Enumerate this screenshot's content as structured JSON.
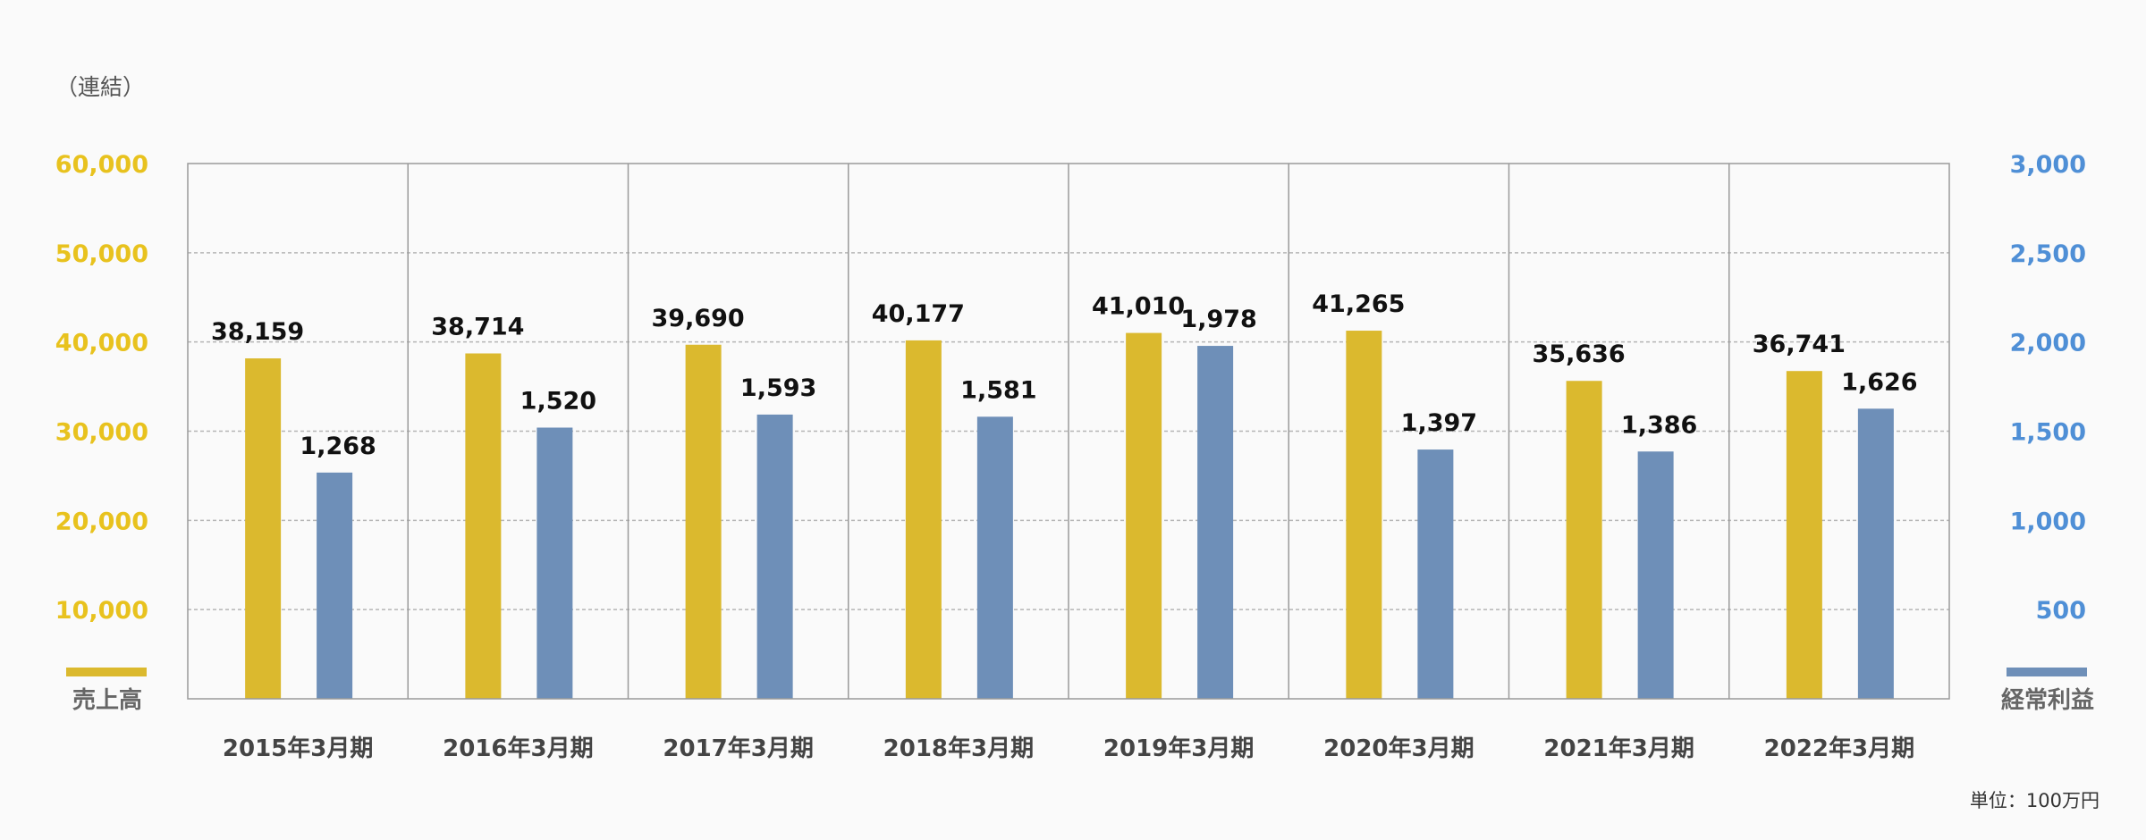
{
  "chart_data": {
    "type": "bar",
    "note": "（連結）",
    "unit": "単位：100万円",
    "categories": [
      "2015年3月期",
      "2016年3月期",
      "2017年3月期",
      "2018年3月期",
      "2019年3月期",
      "2020年3月期",
      "2021年3月期",
      "2022年3月期"
    ],
    "series": [
      {
        "name": "売上高",
        "axis": "left",
        "color": "#dbb92e",
        "values": [
          38159,
          38714,
          39690,
          40177,
          41010,
          41265,
          35636,
          36741
        ],
        "labels": [
          "38,159",
          "38,714",
          "39,690",
          "40,177",
          "41,010",
          "41,265",
          "35,636",
          "36,741"
        ]
      },
      {
        "name": "経常利益",
        "axis": "right",
        "color": "#6e8fb8",
        "values": [
          1268,
          1520,
          1593,
          1581,
          1978,
          1397,
          1386,
          1626
        ],
        "labels": [
          "1,268",
          "1,520",
          "1,593",
          "1,581",
          "1,978",
          "1,397",
          "1,386",
          "1,626"
        ]
      }
    ],
    "y_left": {
      "ylim": [
        0,
        60000
      ],
      "ticks": [
        10000,
        20000,
        30000,
        40000,
        50000,
        60000
      ],
      "tick_labels": [
        "10,000",
        "20,000",
        "30,000",
        "40,000",
        "50,000",
        "60,000"
      ],
      "color": "#e8c21e"
    },
    "y_right": {
      "ylim": [
        0,
        3000
      ],
      "ticks": [
        500,
        1000,
        1500,
        2000,
        2500,
        3000
      ],
      "tick_labels": [
        "500",
        "1,000",
        "1,500",
        "2,000",
        "2,500",
        "3,000"
      ],
      "color": "#4f8fd6"
    },
    "grid": true
  }
}
